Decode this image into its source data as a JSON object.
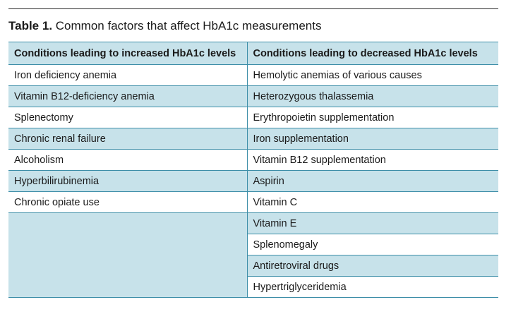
{
  "caption": {
    "label": "Table 1.",
    "text": "Common factors that affect HbA1c measurements"
  },
  "table": {
    "headers": [
      "Conditions leading to increased HbA1c levels",
      "Conditions leading to decreased HbA1c levels"
    ],
    "increased": [
      "Iron deficiency anemia",
      "Vitamin B12-deficiency anemia",
      "Splenectomy",
      "Chronic renal failure",
      "Alcoholism",
      "Hyperbilirubinemia",
      "Chronic opiate use"
    ],
    "decreased": [
      "Hemolytic anemias of various causes",
      "Heterozygous thalassemia",
      "Erythropoietin supplementation",
      "Iron supplementation",
      "Vitamin B12 supplementation",
      "Aspirin",
      "Vitamin C",
      "Vitamin E",
      "Splenomegaly",
      "Antiretroviral drugs",
      "Hypertriglyceridemia"
    ]
  }
}
